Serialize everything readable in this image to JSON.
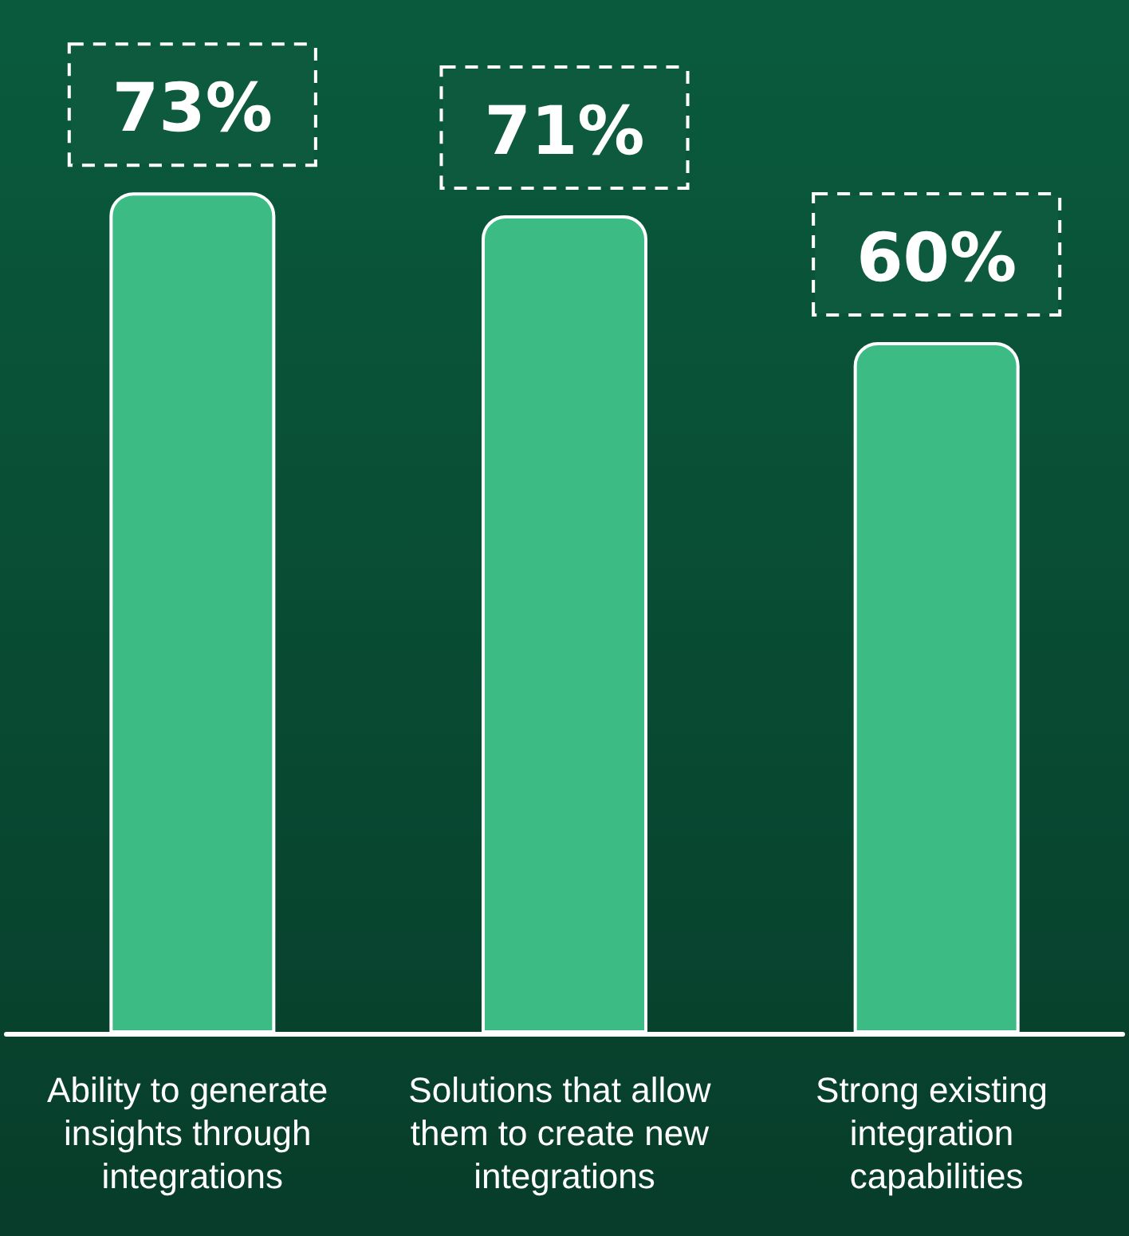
{
  "chart_data": {
    "type": "bar",
    "categories": [
      "Ability to generate insights through integrations",
      "Solutions that allow them to create new integrations",
      "Strong existing integration capabilities"
    ],
    "values": [
      73,
      71,
      60
    ],
    "color": "#3dbb84",
    "value_labels": [
      "73%",
      "71%",
      "60%"
    ],
    "grid": false
  }
}
